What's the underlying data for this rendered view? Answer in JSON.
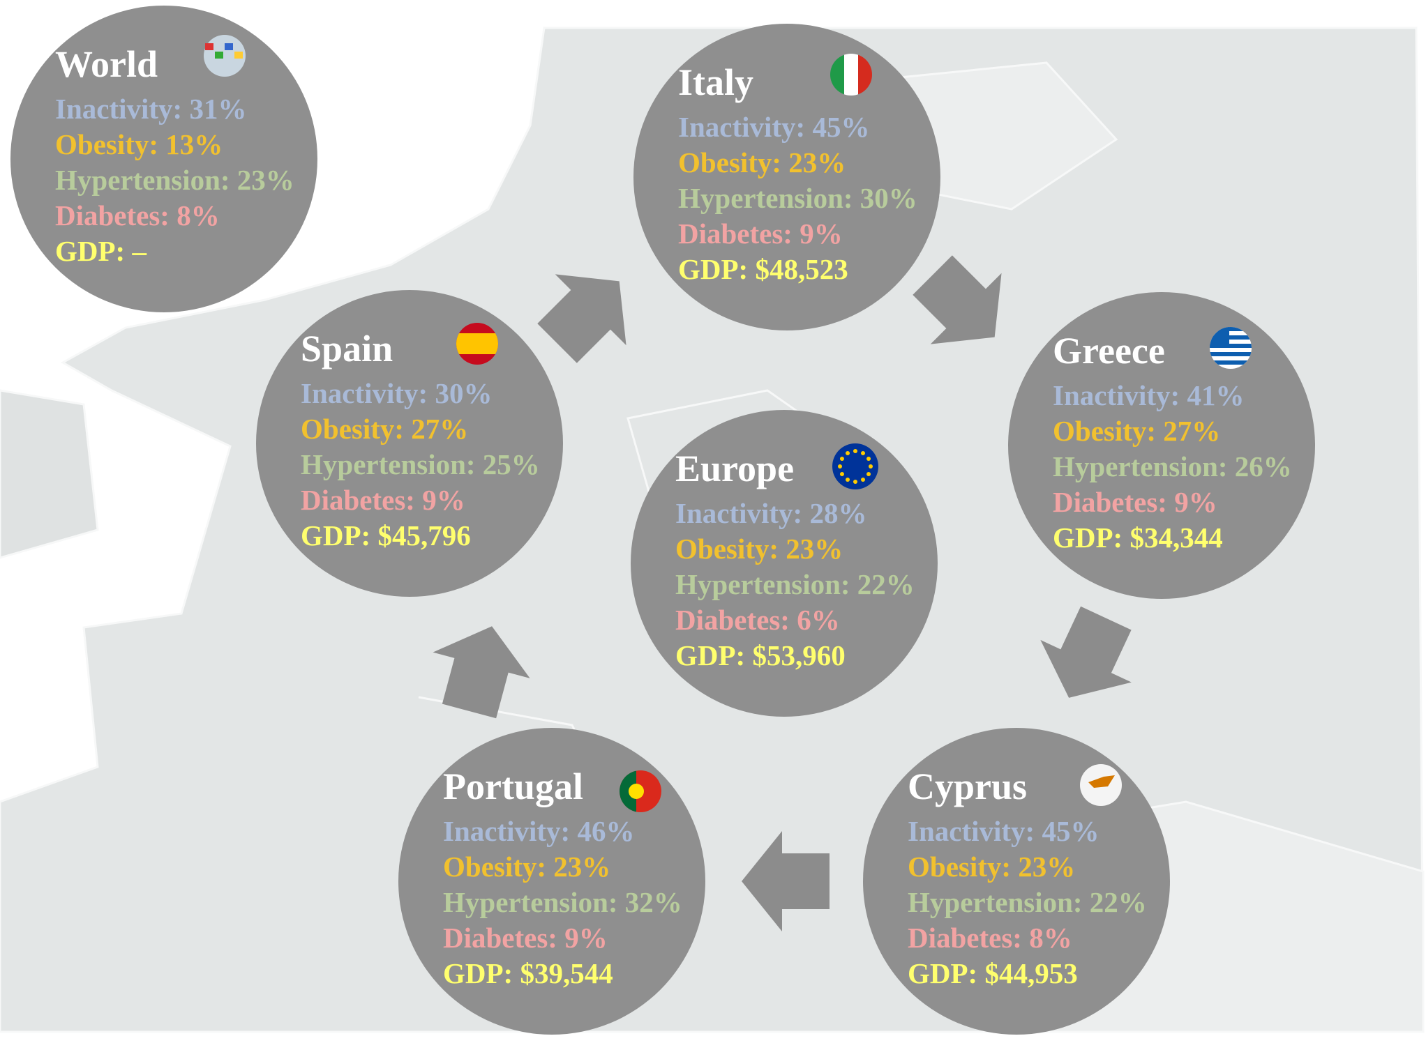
{
  "nodes": [
    {
      "name": "World",
      "lines": [
        "Inactivity: 31%",
        "Obesity: 13%",
        "Hypertension: 23%",
        "Diabetes: 8%",
        "GDP: –"
      ]
    },
    {
      "name": "Italy",
      "lines": [
        "Inactivity: 45%",
        "Obesity: 23%",
        "Hypertension: 30%",
        "Diabetes: 9%",
        "GDP: $48,523"
      ]
    },
    {
      "name": "Spain",
      "lines": [
        "Inactivity: 30%",
        "Obesity: 27%",
        "Hypertension: 25%",
        "Diabetes: 9%",
        "GDP: $45,796"
      ]
    },
    {
      "name": "Greece",
      "lines": [
        "Inactivity: 41%",
        "Obesity: 27%",
        "Hypertension: 26%",
        "Diabetes: 9%",
        "GDP: $34,344"
      ]
    },
    {
      "name": "Europe",
      "lines": [
        "Inactivity: 28%",
        "Obesity: 23%",
        "Hypertension: 22%",
        "Diabetes: 6%",
        "GDP: $53,960"
      ]
    },
    {
      "name": "Portugal",
      "lines": [
        "Inactivity: 46%",
        "Obesity: 23%",
        "Hypertension: 32%",
        "Diabetes: 9%",
        "GDP: $39,544"
      ]
    },
    {
      "name": "Cyprus",
      "lines": [
        "Inactivity: 45%",
        "Obesity: 23%",
        "Hypertension: 22%",
        "Diabetes: 8%",
        "GDP: $44,953"
      ]
    }
  ]
}
